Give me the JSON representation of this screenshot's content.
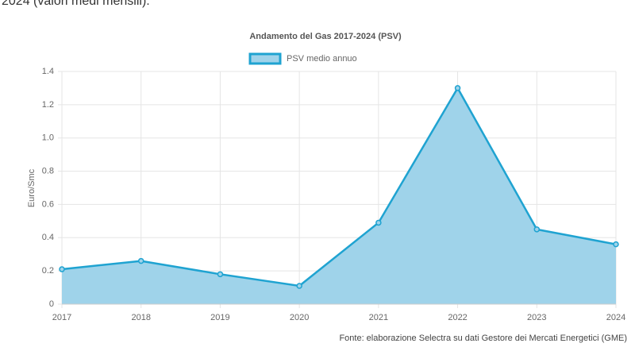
{
  "intro": "2024 (valori medi mensili).",
  "chart_data": {
    "type": "area",
    "title": "Andamento del Gas 2017-2024 (PSV)",
    "y_label": "Euro/Smc",
    "categories": [
      "2017",
      "2018",
      "2019",
      "2020",
      "2021",
      "2022",
      "2023",
      "2024"
    ],
    "series": [
      {
        "name": "PSV medio annuo",
        "color": "#1fa3d1",
        "fill": "#9fd3ea",
        "values": [
          0.21,
          0.26,
          0.18,
          0.11,
          0.49,
          1.3,
          0.45,
          0.36
        ]
      }
    ],
    "ylim": [
      0,
      1.4
    ],
    "yticks": [
      0,
      0.2,
      0.4,
      0.6,
      0.8,
      {
        "value": 1.0,
        "label": "1.0"
      },
      1.2,
      1.4
    ],
    "grid": true,
    "legend": "top"
  },
  "source": "Fonte: elaborazione Selectra su dati Gestore dei Mercati Energetici (GME)"
}
